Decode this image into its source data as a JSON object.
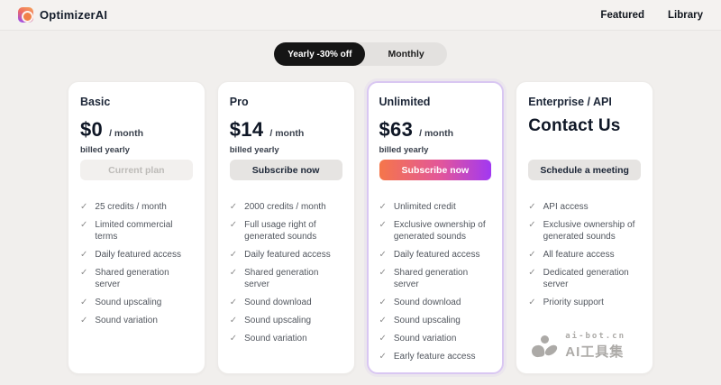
{
  "header": {
    "brand": "OptimizerAI",
    "nav": [
      {
        "id": "featured",
        "label": "Featured"
      },
      {
        "id": "library",
        "label": "Library"
      }
    ]
  },
  "toggle": {
    "yearly_label": "Yearly -30% off",
    "monthly_label": "Monthly",
    "selected": "yearly"
  },
  "plans": [
    {
      "id": "basic",
      "name": "Basic",
      "price": "$0",
      "period": "/ month",
      "billing_note": "billed yearly",
      "button_label": "Current plan",
      "button_variant": "disabled",
      "features": [
        "25 credits / month",
        "Limited commercial terms",
        "Daily featured access",
        "Shared generation server",
        "Sound upscaling",
        "Sound variation"
      ]
    },
    {
      "id": "pro",
      "name": "Pro",
      "price": "$14",
      "period": "/ month",
      "billing_note": "billed yearly",
      "button_label": "Subscribe now",
      "button_variant": "default",
      "features": [
        "2000 credits / month",
        "Full usage right of generated sounds",
        "Daily featured access",
        "Shared generation server",
        "Sound download",
        "Sound upscaling",
        "Sound variation"
      ]
    },
    {
      "id": "unlimited",
      "name": "Unlimited",
      "price": "$63",
      "period": "/ month",
      "billing_note": "billed yearly",
      "button_label": "Subscribe now",
      "button_variant": "gradient",
      "highlighted": true,
      "features": [
        "Unlimited credit",
        "Exclusive ownership of generated sounds",
        "Daily featured access",
        "Shared generation server",
        "Sound download",
        "Sound upscaling",
        "Sound variation",
        "Early feature access"
      ]
    },
    {
      "id": "enterprise",
      "name": "Enterprise / API",
      "contact_heading": "Contact Us",
      "button_label": "Schedule a meeting",
      "button_variant": "default",
      "show_watermark": true,
      "features": [
        "API access",
        "Exclusive ownership of generated sounds",
        "All feature access",
        "Dedicated generation server",
        "Priority support"
      ]
    }
  ],
  "icons": {
    "check_glyph": "✓"
  },
  "watermark": {
    "line1": "ai-bot.cn",
    "line2": "AI工具集"
  },
  "colors": {
    "accent_gradient_start": "#f5764a",
    "accent_gradient_mid": "#e2569b",
    "accent_gradient_end": "#a138f2",
    "highlight_border": "#d9c7f2",
    "toggle_active_bg": "#151515"
  }
}
